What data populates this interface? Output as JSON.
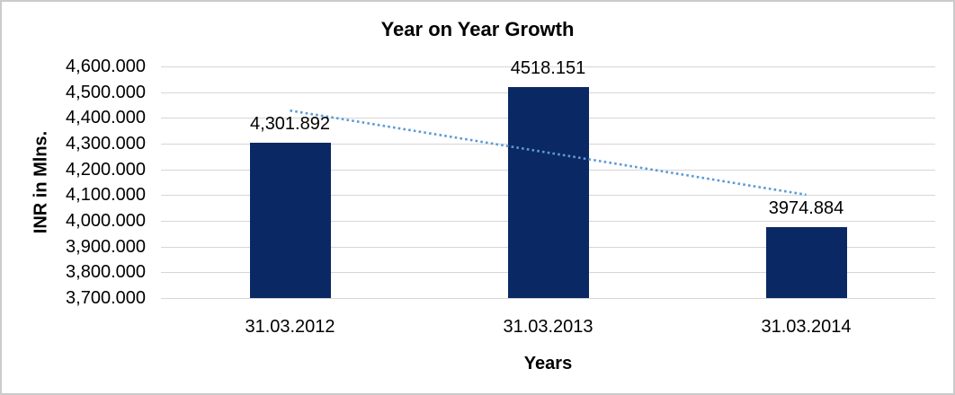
{
  "chart": {
    "background_color": "#FFFFFF",
    "border_color": "#CBCBCB"
  },
  "chart_data": {
    "type": "bar",
    "title": "Year on Year Growth",
    "categories": [
      "31.03.2012",
      "31.03.2013",
      "31.03.2014"
    ],
    "values": [
      4301.892,
      4518.151,
      3974.884
    ],
    "data_labels": [
      "4,301.892",
      "4518.151",
      "3974.884"
    ],
    "xlabel": "Years",
    "ylabel": "INR in Mlns.",
    "ylim": [
      3700,
      4600
    ],
    "ytick_step": 100,
    "ytick_labels": [
      "4,600.000",
      "4,500.000",
      "4,400.000",
      "4,300.000",
      "4,200.000",
      "4,100.000",
      "4,000.000",
      "3,900.000",
      "3,800.000",
      "3,700.000"
    ],
    "grid": "horizontal",
    "legend": "none",
    "bar_color": "#0A2864",
    "gridline_color": "#D6D6D6",
    "trendline": {
      "type": "linear",
      "style": "dotted",
      "color": "#5B9BD5"
    }
  }
}
